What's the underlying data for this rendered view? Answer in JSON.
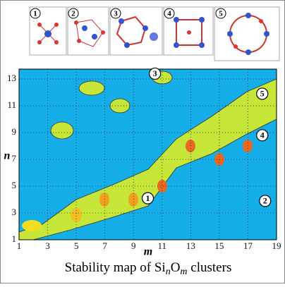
{
  "chart_data": {
    "type": "contour",
    "title": [
      "Stability map of Si",
      "n",
      "O",
      "m",
      " clusters"
    ],
    "x_label": "m",
    "y_label": "n",
    "xlim": [
      1,
      19
    ],
    "ylim": [
      1,
      13.74
    ],
    "xticks": [
      1,
      3,
      5,
      7,
      9,
      11,
      13,
      15,
      17,
      19
    ],
    "yticks": [
      1,
      3,
      5,
      7,
      9,
      11,
      13
    ],
    "grid": true,
    "annotations": [
      {
        "label": "1",
        "x": 10,
        "y": 4.1
      },
      {
        "label": "2",
        "x": 18.2,
        "y": 3.9
      },
      {
        "label": "3",
        "x": 10.5,
        "y": 13.4
      },
      {
        "label": "4",
        "x": 18,
        "y": 8.8
      },
      {
        "label": "5",
        "x": 18,
        "y": 11.9
      }
    ],
    "panels": [
      "1",
      "2",
      "3",
      "4",
      "5"
    ]
  }
}
